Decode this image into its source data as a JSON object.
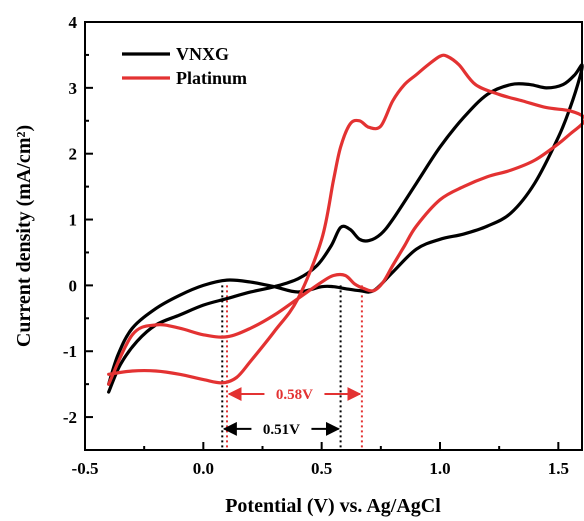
{
  "chart_data": {
    "type": "line",
    "xlabel": "Potential (V) vs. Ag/AgCl",
    "ylabel": "Current density (mA/cm²)",
    "xlim": [
      -0.5,
      1.6
    ],
    "ylim": [
      -2.5,
      4
    ],
    "xticks": [
      -0.5,
      0.0,
      0.5,
      1.0,
      1.5
    ],
    "xtick_labels": [
      "-0.5",
      "0.0",
      "0.5",
      "1.0",
      "1.5"
    ],
    "yticks": [
      -2,
      -1,
      0,
      1,
      2,
      3,
      4
    ],
    "ytick_labels": [
      "-2",
      "-1",
      "0",
      "1",
      "2",
      "3",
      "4"
    ],
    "grid": false,
    "legend_position": "top-left",
    "series": [
      {
        "name": "VNXG",
        "color": "#000000",
        "x": [
          -0.4,
          -0.35,
          -0.28,
          -0.2,
          -0.1,
          0.0,
          0.1,
          0.2,
          0.3,
          0.4,
          0.48,
          0.54,
          0.58,
          0.62,
          0.66,
          0.7,
          0.75,
          0.8,
          0.9,
          1.0,
          1.1,
          1.2,
          1.3,
          1.38,
          1.45,
          1.52,
          1.57,
          1.6,
          1.59,
          1.55,
          1.5,
          1.4,
          1.3,
          1.2,
          1.1,
          1.0,
          0.9,
          0.8,
          0.72,
          0.66,
          0.6,
          0.55,
          0.5,
          0.4,
          0.3,
          0.2,
          0.1,
          0.0,
          -0.1,
          -0.2,
          -0.3,
          -0.36,
          -0.4
        ],
        "y": [
          -1.62,
          -1.2,
          -0.85,
          -0.6,
          -0.45,
          -0.3,
          -0.2,
          -0.1,
          -0.02,
          0.1,
          0.3,
          0.6,
          0.88,
          0.85,
          0.7,
          0.68,
          0.78,
          1.0,
          1.55,
          2.1,
          2.55,
          2.9,
          3.05,
          3.05,
          3.0,
          3.05,
          3.2,
          3.35,
          3.15,
          2.7,
          2.25,
          1.55,
          1.1,
          0.9,
          0.78,
          0.7,
          0.55,
          0.2,
          -0.08,
          -0.08,
          -0.05,
          -0.02,
          -0.02,
          -0.1,
          -0.02,
          0.05,
          0.08,
          0.0,
          -0.15,
          -0.35,
          -0.65,
          -1.05,
          -1.5
        ]
      },
      {
        "name": "Platinum",
        "color": "#e33232",
        "x": [
          -0.4,
          -0.3,
          -0.2,
          -0.1,
          0.0,
          0.08,
          0.14,
          0.2,
          0.3,
          0.4,
          0.5,
          0.55,
          0.58,
          0.62,
          0.66,
          0.7,
          0.75,
          0.8,
          0.85,
          0.9,
          0.95,
          1.0,
          1.03,
          1.08,
          1.15,
          1.25,
          1.35,
          1.45,
          1.55,
          1.61,
          1.6,
          1.55,
          1.5,
          1.4,
          1.3,
          1.2,
          1.1,
          1.0,
          0.9,
          0.85,
          0.8,
          0.76,
          0.72,
          0.68,
          0.64,
          0.6,
          0.55,
          0.5,
          0.4,
          0.3,
          0.2,
          0.1,
          0.0,
          -0.1,
          -0.2,
          -0.3,
          -0.4
        ],
        "y": [
          -1.35,
          -1.3,
          -1.3,
          -1.35,
          -1.43,
          -1.48,
          -1.4,
          -1.15,
          -0.7,
          -0.2,
          0.7,
          1.6,
          2.1,
          2.45,
          2.5,
          2.4,
          2.42,
          2.8,
          3.05,
          3.2,
          3.35,
          3.48,
          3.48,
          3.35,
          3.05,
          2.9,
          2.8,
          2.7,
          2.65,
          2.55,
          2.45,
          2.3,
          2.15,
          1.9,
          1.75,
          1.65,
          1.5,
          1.3,
          0.9,
          0.6,
          0.3,
          0.05,
          -0.08,
          -0.05,
          0.02,
          0.15,
          0.15,
          0.05,
          -0.2,
          -0.45,
          -0.65,
          -0.78,
          -0.75,
          -0.65,
          -0.6,
          -0.75,
          -1.5
        ]
      }
    ],
    "markers": [
      {
        "x": 0.08,
        "color": "#000000",
        "style": "dotted"
      },
      {
        "x": 0.58,
        "color": "#000000",
        "style": "dotted"
      },
      {
        "x": 0.1,
        "color": "#e33232",
        "style": "dotted"
      },
      {
        "x": 0.67,
        "color": "#e33232",
        "style": "dotted"
      }
    ],
    "annotations": [
      {
        "text": "0.58V",
        "color": "#e33232",
        "x_from": 0.1,
        "x_to": 0.67,
        "y": -1.65
      },
      {
        "text": "0.51V",
        "color": "#000000",
        "x_from": 0.08,
        "x_to": 0.58,
        "y": -2.18
      }
    ]
  }
}
